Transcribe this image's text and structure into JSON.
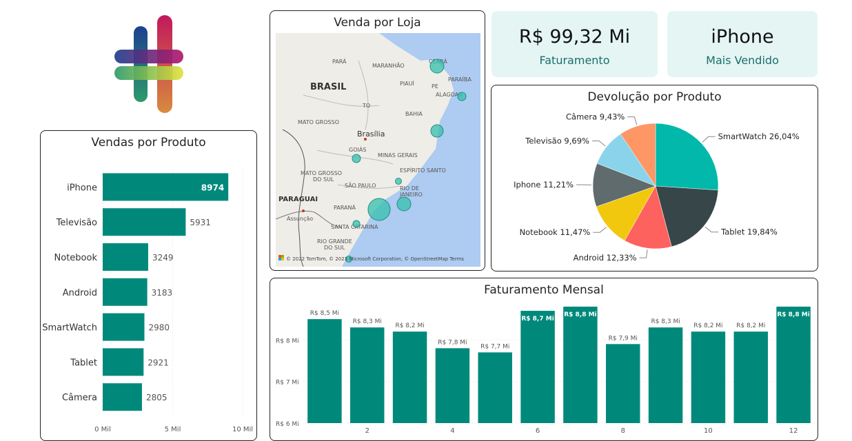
{
  "logo": {
    "colors": [
      "#1d3f8f",
      "#8a1f63",
      "#d8e23a",
      "#2d9b6b",
      "#d88b3f"
    ]
  },
  "kpis": [
    {
      "value": "R$ 99,32 Mi",
      "label": "Faturamento"
    },
    {
      "value": "iPhone",
      "label": "Mais Vendido"
    }
  ],
  "bar_color": "#00897b",
  "map": {
    "title": "Venda por Loja",
    "labels": [
      "PARÁ",
      "MARANHÃO",
      "CEARÁ",
      "PIAUÍ",
      "PARAÍBA",
      "PE",
      "ALAGOAS",
      "BRASIL",
      "TO",
      "BAHIA",
      "MATO GROSSO",
      "Brasília",
      "GOIÁS",
      "MINAS GERAIS",
      "MATO GROSSO",
      "DO SUL",
      "ESPÍRITO SANTO",
      "SÃO PAULO",
      "RIO DE",
      "JANEIRO",
      "PARAGUAI",
      "PARANÁ",
      "Assunção",
      "SANTA CATARINA",
      "RIO GRANDE",
      "DO SUL"
    ],
    "attribution": "© 2022 TomTom, © 2023 Microsoft Corporation, © OpenStreetMap  Terms"
  },
  "chart_data": [
    {
      "type": "bar",
      "title": "Vendas por Produto",
      "orientation": "horizontal",
      "categories": [
        "iPhone",
        "Televisão",
        "Notebook",
        "Android",
        "SmartWatch",
        "Tablet",
        "Câmera"
      ],
      "values": [
        8974,
        5931,
        3249,
        3183,
        2980,
        2921,
        2805
      ],
      "value_labels": [
        "8974",
        "5931",
        "3249",
        "3183",
        "2980",
        "2921",
        "2805"
      ],
      "x_ticks": [
        "0 Mil",
        "5 Mil",
        "10 Mil"
      ],
      "xlim": [
        0,
        10000
      ]
    },
    {
      "type": "pie",
      "title": "Devolução por Produto",
      "categories": [
        "SmartWatch",
        "Tablet",
        "Android",
        "Notebook",
        "Iphone",
        "Televisão",
        "Câmera"
      ],
      "values": [
        26.04,
        19.84,
        12.33,
        11.47,
        11.21,
        9.69,
        9.43
      ],
      "labels": [
        "SmartWatch 26,04%",
        "Tablet 19,84%",
        "Android 12,33%",
        "Notebook 11,47%",
        "Iphone 11,21%",
        "Televisão 9,69%",
        "Câmera 9,43%"
      ],
      "colors": [
        "#01b8aa",
        "#374649",
        "#fd625e",
        "#f2c80f",
        "#5f6b6d",
        "#8ad4eb",
        "#fe9666"
      ]
    },
    {
      "type": "bar",
      "title": "Faturamento Mensal",
      "categories": [
        "1",
        "2",
        "3",
        "4",
        "5",
        "6",
        "7",
        "8",
        "9",
        "10",
        "11",
        "12"
      ],
      "values": [
        8.5,
        8.3,
        8.2,
        7.8,
        7.7,
        8.7,
        8.8,
        7.9,
        8.3,
        8.2,
        8.2,
        8.8
      ],
      "value_labels": [
        "R$ 8,5 Mi",
        "R$ 8,3 Mi",
        "R$ 8,2 Mi",
        "R$ 7,8 Mi",
        "R$ 7,7 Mi",
        "R$ 8,7 Mi",
        "R$ 8,8 Mi",
        "R$ 7,9 Mi",
        "R$ 8,3 Mi",
        "R$ 8,2 Mi",
        "R$ 8,2 Mi",
        "R$ 8,8 Mi"
      ],
      "x_ticks": [
        "2",
        "4",
        "6",
        "8",
        "10",
        "12"
      ],
      "y_ticks": [
        "R$ 6 Mi",
        "R$ 7 Mi",
        "R$ 8 Mi"
      ],
      "ylim": [
        6,
        8.85
      ]
    }
  ]
}
